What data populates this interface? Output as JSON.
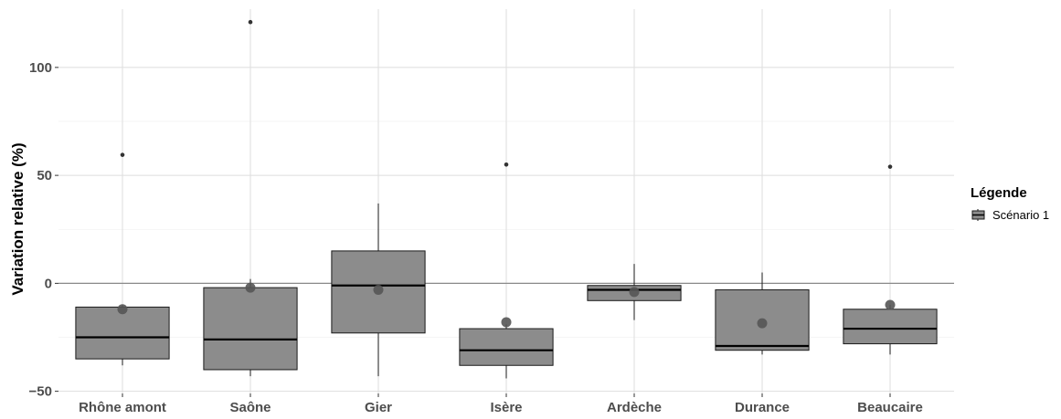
{
  "chart_data": {
    "type": "boxplot",
    "title": "",
    "xlabel": "",
    "ylabel": "Variation relative (%)",
    "ylim": [
      -51,
      127
    ],
    "yticks": [
      -50,
      0,
      50,
      100
    ],
    "ytick_labels": [
      "−50",
      "0",
      "50",
      "100"
    ],
    "grid": true,
    "reference_line": 0,
    "legend": {
      "title": "Légende",
      "position": "right",
      "entries": [
        "Scénario 1"
      ]
    },
    "colors": {
      "box_fill": "#8c8c8c",
      "box_border": "#1a1a1a",
      "median": "#000000",
      "mean_point": "#555555",
      "grid": "#dedede",
      "zero_line": "#8a8a8a"
    },
    "categories": [
      "Rhône amont",
      "Saône",
      "Gier",
      "Isère",
      "Ardèche",
      "Durance",
      "Beaucaire"
    ],
    "series": [
      {
        "name": "Scénario 1",
        "boxes": [
          {
            "category": "Rhône amont",
            "whisker_low": -38,
            "q1": -35,
            "median": -25,
            "q3": -11,
            "whisker_high": -10,
            "mean": -12,
            "outliers": [
              59.5
            ]
          },
          {
            "category": "Saône",
            "whisker_low": -43,
            "q1": -40,
            "median": -26,
            "q3": -2,
            "whisker_high": 2,
            "mean": -2,
            "outliers": [
              121
            ]
          },
          {
            "category": "Gier",
            "whisker_low": -43,
            "q1": -23,
            "median": -1,
            "q3": 15,
            "whisker_high": 37,
            "mean": -3,
            "outliers": []
          },
          {
            "category": "Isère",
            "whisker_low": -44,
            "q1": -38,
            "median": -31,
            "q3": -21,
            "whisker_high": -19,
            "mean": -18,
            "outliers": [
              55
            ]
          },
          {
            "category": "Ardèche",
            "whisker_low": -17,
            "q1": -8,
            "median": -3,
            "q3": -1,
            "whisker_high": 9,
            "mean": -4,
            "outliers": []
          },
          {
            "category": "Durance",
            "whisker_low": -33,
            "q1": -31,
            "median": -29,
            "q3": -3,
            "whisker_high": 5,
            "mean": -18.5,
            "outliers": []
          },
          {
            "category": "Beaucaire",
            "whisker_low": -33,
            "q1": -28,
            "median": -21,
            "q3": -12,
            "whisker_high": -10,
            "mean": -10,
            "outliers": [
              54
            ]
          }
        ]
      }
    ]
  }
}
